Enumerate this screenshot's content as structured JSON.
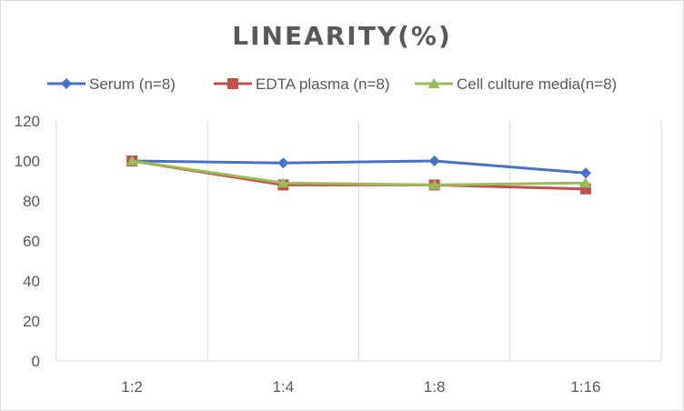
{
  "chart_data": {
    "type": "line",
    "title": "LINEARITY(%)",
    "xlabel": "",
    "ylabel": "",
    "categories": [
      "1:2",
      "1:4",
      "1:8",
      "1:16"
    ],
    "ylim": [
      0,
      120
    ],
    "yticks": [
      0,
      20,
      40,
      60,
      80,
      100,
      120
    ],
    "grid": "vertical",
    "legend_position": "top",
    "series": [
      {
        "name": "Serum (n=8)",
        "values": [
          100,
          99,
          100,
          94
        ],
        "color": "#4472c4",
        "marker": "diamond"
      },
      {
        "name": "EDTA plasma (n=8)",
        "values": [
          100,
          88,
          88,
          86
        ],
        "color": "#c0504d",
        "marker": "square"
      },
      {
        "name": "Cell culture media(n=8)",
        "values": [
          100,
          89,
          88,
          89
        ],
        "color": "#9bbb59",
        "marker": "triangle"
      }
    ]
  }
}
